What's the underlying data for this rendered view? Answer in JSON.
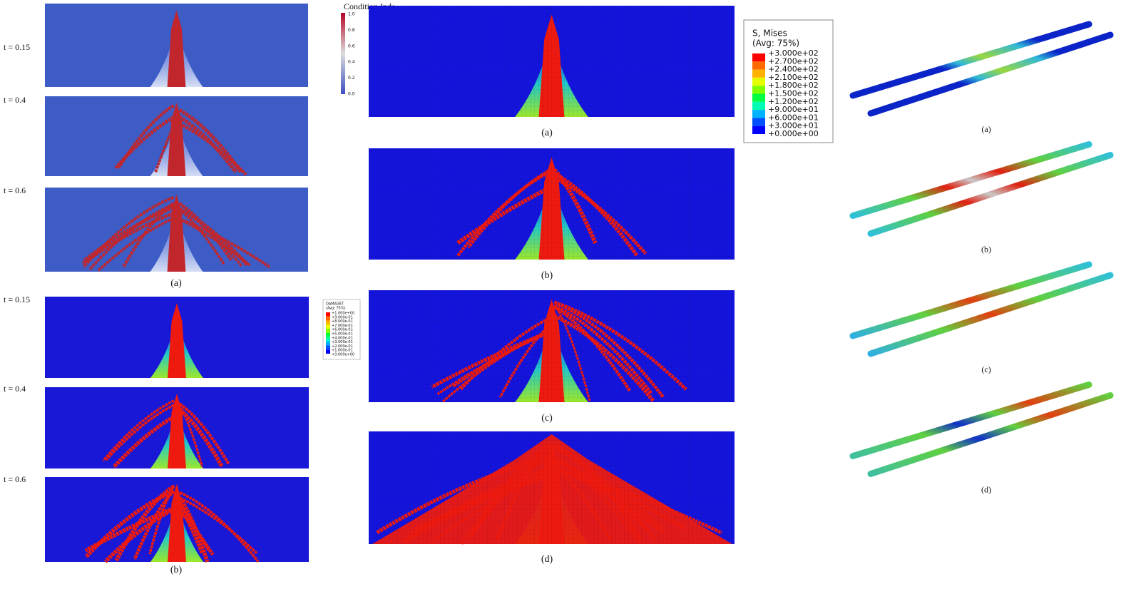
{
  "left": {
    "panel_a": {
      "time_labels": [
        "t = 0.15",
        "t = 0.4",
        "t = 0.6"
      ],
      "caption": "(a)"
    },
    "colorbar": {
      "title": "Condition Inde",
      "ticks": [
        "1.0",
        "0.8",
        "0.6",
        "0.4",
        "0.2",
        "0.0"
      ]
    },
    "panel_b": {
      "time_labels": [
        "t = 0.15",
        "t = 0.4",
        "t = 0.6"
      ],
      "caption": "(b)"
    },
    "legend": {
      "title": "DAMAGET",
      "subtitle": "(Avg: 75%)",
      "values": [
        "+1.000e+00",
        "+9.000e-01",
        "+8.000e-01",
        "+7.000e-01",
        "+6.000e-01",
        "+5.000e-01",
        "+4.000e-01",
        "+3.000e-01",
        "+2.000e-01",
        "+1.000e-01",
        "+0.000e+00"
      ]
    }
  },
  "middle": {
    "captions": [
      "(a)",
      "(b)",
      "(c)",
      "(d)"
    ]
  },
  "right": {
    "legend": {
      "title": "S, Mises",
      "subtitle": "(Avg: 75%)",
      "values": [
        "+3.000e+02",
        "+2.700e+02",
        "+2.400e+02",
        "+2.100e+02",
        "+1.800e+02",
        "+1.500e+02",
        "+1.200e+02",
        "+9.000e+01",
        "+6.000e+01",
        "+3.000e+01",
        "+0.000e+00"
      ]
    },
    "captions": [
      "(a)",
      "(b)",
      "(c)",
      "(d)"
    ]
  }
}
